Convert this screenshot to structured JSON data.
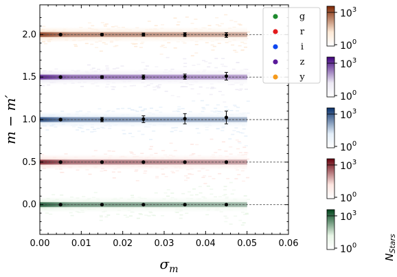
{
  "chart_data": {
    "type": "scatter",
    "xlabel": "σ",
    "xlabel_sub": "m",
    "ylabel": "m − m′",
    "xlim": [
      0.0,
      0.06
    ],
    "ylim": [
      -0.35,
      2.35
    ],
    "x_ticks": [
      "0.00",
      "0.01",
      "0.02",
      "0.03",
      "0.04",
      "0.05",
      "0.06"
    ],
    "y_ticks": [
      "0.0",
      "0.5",
      "1.0",
      "1.5",
      "2.0"
    ],
    "y_tick_values": [
      0.0,
      0.5,
      1.0,
      1.5,
      2.0
    ],
    "grid": false,
    "legend_position": "top-right",
    "reference_line_end_x": 0.06,
    "density_x_range": [
      0.0,
      0.05
    ],
    "series": [
      {
        "name": "g",
        "offset": 0.0,
        "color": "#1e8a2e",
        "cmap_light": "#e8f5e6",
        "cmap_dark": "#00441b",
        "points": [
          [
            0.005,
            0.0,
            0.003
          ],
          [
            0.015,
            0.0,
            0.004
          ],
          [
            0.025,
            0.0,
            0.005
          ],
          [
            0.035,
            0.0,
            0.006
          ],
          [
            0.045,
            0.0,
            0.007
          ]
        ]
      },
      {
        "name": "r",
        "offset": 0.5,
        "color": "#e31a1c",
        "cmap_light": "#fde5e0",
        "cmap_dark": "#67000d",
        "points": [
          [
            0.005,
            0.5,
            0.004
          ],
          [
            0.015,
            0.5,
            0.005
          ],
          [
            0.025,
            0.5,
            0.006
          ],
          [
            0.035,
            0.5,
            0.008
          ],
          [
            0.045,
            0.5,
            0.01
          ]
        ]
      },
      {
        "name": "i",
        "offset": 1.0,
        "color": "#0d47f0",
        "cmap_light": "#e3eef9",
        "cmap_dark": "#08306b",
        "points": [
          [
            0.005,
            1.0,
            0.01
          ],
          [
            0.015,
            1.0,
            0.025
          ],
          [
            0.025,
            1.005,
            0.04
          ],
          [
            0.035,
            1.01,
            0.06
          ],
          [
            0.045,
            1.025,
            0.075
          ]
        ]
      },
      {
        "name": "z",
        "offset": 1.5,
        "color": "#5a1a9a",
        "cmap_light": "#ece9f4",
        "cmap_dark": "#3f007d",
        "points": [
          [
            0.005,
            1.5,
            0.008
          ],
          [
            0.015,
            1.5,
            0.015
          ],
          [
            0.025,
            1.5,
            0.025
          ],
          [
            0.035,
            1.505,
            0.03
          ],
          [
            0.045,
            1.51,
            0.045
          ]
        ]
      },
      {
        "name": "y",
        "offset": 2.0,
        "color": "#f59a1b",
        "cmap_light": "#fde9d6",
        "cmap_dark": "#7f2704",
        "points": [
          [
            0.005,
            2.0,
            0.008
          ],
          [
            0.015,
            2.0,
            0.012
          ],
          [
            0.025,
            2.0,
            0.018
          ],
          [
            0.035,
            2.0,
            0.022
          ],
          [
            0.045,
            1.995,
            0.028
          ]
        ]
      }
    ],
    "colorbars": {
      "labels_high": {
        "base": "10",
        "exp": "3"
      },
      "labels_low": {
        "base": "10",
        "exp": "0"
      },
      "title": "N",
      "title_sub": "Stars"
    }
  }
}
